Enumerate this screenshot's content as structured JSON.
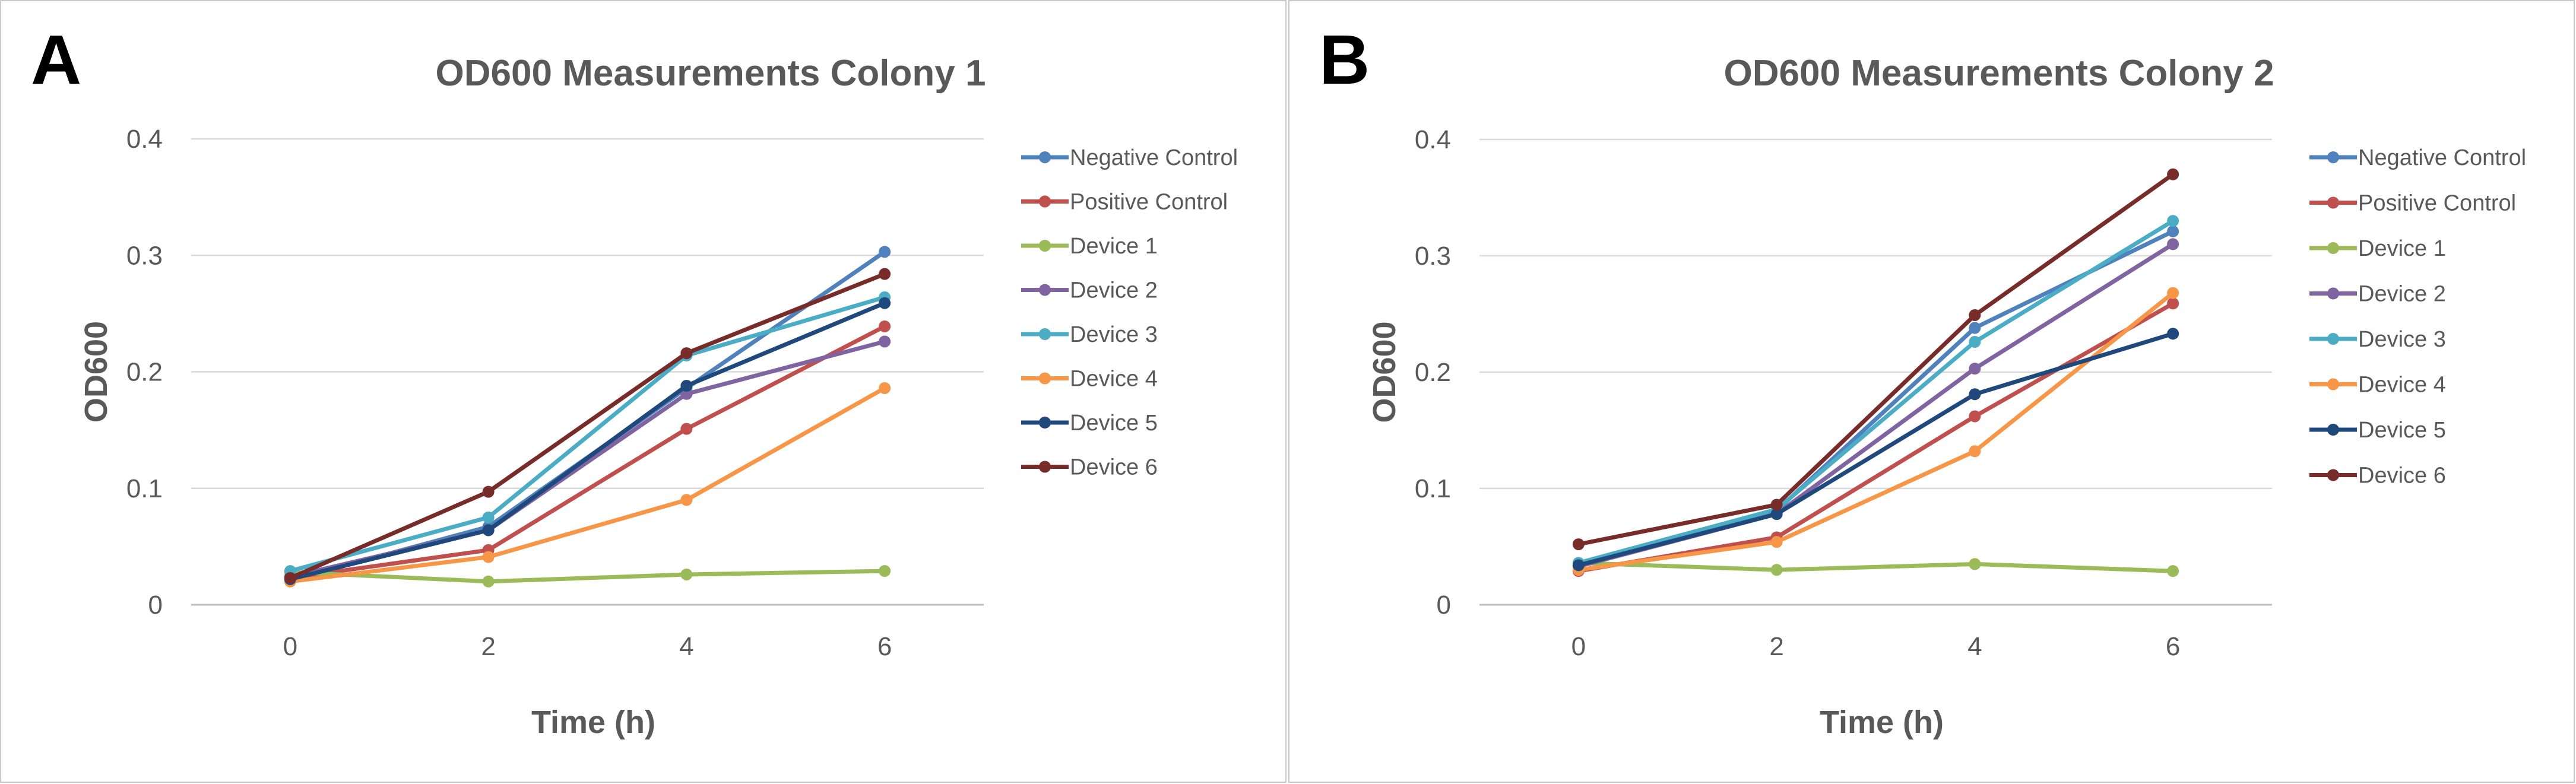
{
  "chart_data": [
    {
      "type": "line",
      "panel_label": "A",
      "title": "OD600 Measurements Colony 1",
      "xlabel": "Time (h)",
      "ylabel": "OD600",
      "x": [
        0,
        2,
        4,
        6
      ],
      "x_tick_labels": [
        "0",
        "2",
        "4",
        "6"
      ],
      "ylim": [
        0,
        0.4
      ],
      "y_ticks": [
        0,
        0.1,
        0.2,
        0.3,
        0.4
      ],
      "y_tick_labels": [
        "0",
        "0.1",
        "0.2",
        "0.3",
        "0.4"
      ],
      "grid": "horizontal",
      "legend_position": "right",
      "series": [
        {
          "name": "Negative Control",
          "color": "#4F81BD",
          "values": [
            0.021,
            0.067,
            0.186,
            0.303
          ]
        },
        {
          "name": "Positive Control",
          "color": "#C0504D",
          "values": [
            0.023,
            0.047,
            0.151,
            0.239
          ]
        },
        {
          "name": "Device 1",
          "color": "#9BBB59",
          "values": [
            0.028,
            0.02,
            0.026,
            0.029
          ]
        },
        {
          "name": "Device 2",
          "color": "#8064A2",
          "values": [
            0.024,
            0.064,
            0.181,
            0.226
          ]
        },
        {
          "name": "Device 3",
          "color": "#4BACC6",
          "values": [
            0.029,
            0.075,
            0.214,
            0.264
          ]
        },
        {
          "name": "Device 4",
          "color": "#F79646",
          "values": [
            0.02,
            0.041,
            0.09,
            0.186
          ]
        },
        {
          "name": "Device 5",
          "color": "#1F497D",
          "values": [
            0.022,
            0.064,
            0.188,
            0.259
          ]
        },
        {
          "name": "Device 6",
          "color": "#772C2A",
          "values": [
            0.023,
            0.097,
            0.216,
            0.284
          ]
        }
      ]
    },
    {
      "type": "line",
      "panel_label": "B",
      "title": "OD600 Measurements Colony 2",
      "xlabel": "Time (h)",
      "ylabel": "OD600",
      "x": [
        0,
        2,
        4,
        6
      ],
      "x_tick_labels": [
        "0",
        "2",
        "4",
        "6"
      ],
      "ylim": [
        0,
        0.4
      ],
      "y_ticks": [
        0,
        0.1,
        0.2,
        0.3,
        0.4
      ],
      "y_tick_labels": [
        "0",
        "0.1",
        "0.2",
        "0.3",
        "0.4"
      ],
      "grid": "horizontal",
      "legend_position": "right",
      "series": [
        {
          "name": "Negative Control",
          "color": "#4F81BD",
          "values": [
            0.034,
            0.081,
            0.238,
            0.321
          ]
        },
        {
          "name": "Positive Control",
          "color": "#C0504D",
          "values": [
            0.029,
            0.058,
            0.162,
            0.259
          ]
        },
        {
          "name": "Device 1",
          "color": "#9BBB59",
          "values": [
            0.036,
            0.03,
            0.035,
            0.029
          ]
        },
        {
          "name": "Device 2",
          "color": "#8064A2",
          "values": [
            0.033,
            0.078,
            0.203,
            0.31
          ]
        },
        {
          "name": "Device 3",
          "color": "#4BACC6",
          "values": [
            0.036,
            0.082,
            0.226,
            0.33
          ]
        },
        {
          "name": "Device 4",
          "color": "#F79646",
          "values": [
            0.03,
            0.054,
            0.132,
            0.268
          ]
        },
        {
          "name": "Device 5",
          "color": "#1F497D",
          "values": [
            0.034,
            0.078,
            0.181,
            0.233
          ]
        },
        {
          "name": "Device 6",
          "color": "#772C2A",
          "values": [
            0.052,
            0.086,
            0.249,
            0.37
          ]
        }
      ]
    }
  ]
}
